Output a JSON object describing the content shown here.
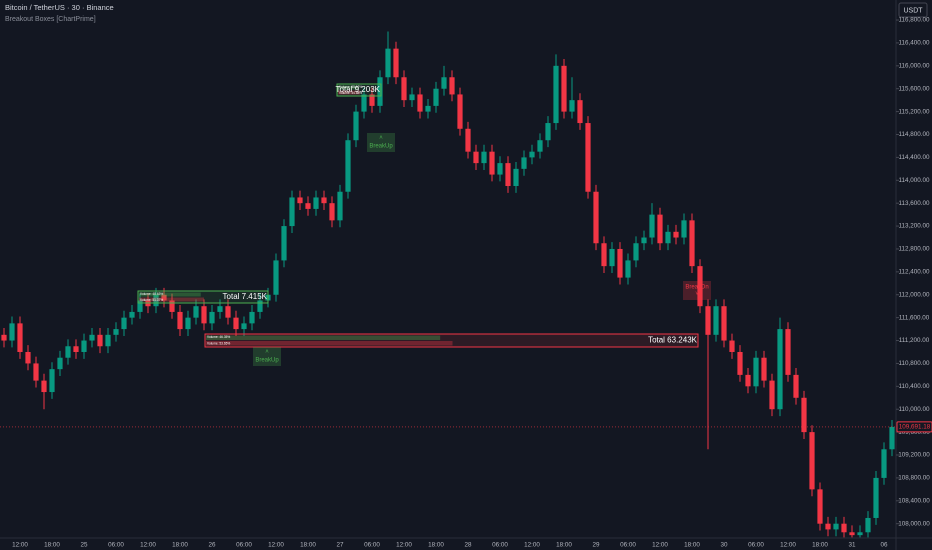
{
  "chart_data": {
    "type": "candlestick",
    "title": "Bitcoin / TetherUS · 30 · Binance",
    "subtitle": "Breakout Boxes [ChartPrime]",
    "currency": "USDT",
    "categories": [
      null,
      null,
      "12:00",
      null,
      null,
      null,
      "18:00",
      null,
      null,
      null,
      "25",
      null,
      null,
      null,
      "06:00",
      null,
      null,
      null,
      "12:00",
      null,
      null,
      null,
      "18:00",
      null,
      null,
      null,
      "26",
      null,
      null,
      null,
      "06:00",
      null,
      null,
      null,
      "12:00",
      null,
      null,
      null,
      "18:00",
      null,
      null,
      null,
      "27",
      null,
      null,
      null,
      "06:00",
      null,
      null,
      null,
      "12:00",
      null,
      null,
      null,
      "18:00",
      null,
      null,
      null,
      "28",
      null,
      null,
      null,
      "06:00",
      null,
      null,
      null,
      "12:00",
      null,
      null,
      null,
      "18:00",
      null,
      null,
      null,
      "29",
      null,
      null,
      null,
      "06:00",
      null,
      null,
      null,
      "12:00",
      null,
      null,
      null,
      "18:00",
      null,
      null,
      null,
      "30",
      null,
      null,
      null,
      "06:00",
      null,
      null,
      null,
      "12:00",
      null,
      null,
      null,
      "18:00",
      null,
      null,
      null,
      "31",
      null,
      null,
      null,
      "06",
      null
    ],
    "open": [
      111300,
      111200,
      111500,
      111000,
      110800,
      110500,
      110300,
      110700,
      110900,
      111100,
      111000,
      111200,
      111300,
      111100,
      111300,
      111400,
      111600,
      111700,
      111900,
      111800,
      112000,
      111900,
      111700,
      111400,
      111600,
      111800,
      111500,
      111700,
      111800,
      111600,
      111400,
      111500,
      111700,
      111900,
      112000,
      112600,
      113200,
      113700,
      113600,
      113500,
      113700,
      113600,
      113300,
      113800,
      114700,
      115200,
      115500,
      115300,
      115800,
      116300,
      115800,
      115400,
      115500,
      115200,
      115300,
      115600,
      115800,
      115500,
      114900,
      114500,
      114300,
      114500,
      114100,
      114300,
      113900,
      114200,
      114400,
      114500,
      114700,
      115000,
      116000,
      115200,
      115400,
      115000,
      113800,
      112900,
      112500,
      112800,
      112300,
      112600,
      112900,
      113000,
      113400,
      112900,
      113100,
      113000,
      113300,
      112500,
      111800,
      111300,
      111800,
      111200,
      111000,
      110600,
      110400,
      110900,
      110500,
      110000,
      111400,
      110600,
      110200,
      109600,
      108600,
      108000,
      107900,
      108000,
      107850,
      107800,
      107850,
      108100,
      108800,
      109300
    ],
    "high": [
      111420,
      111620,
      111620,
      111120,
      110920,
      110620,
      110820,
      111020,
      111220,
      111220,
      111320,
      111420,
      111420,
      111420,
      111520,
      111720,
      111820,
      112020,
      112020,
      112120,
      112120,
      112020,
      111820,
      111720,
      111920,
      111920,
      111820,
      111920,
      111920,
      111720,
      111620,
      111820,
      112020,
      112120,
      112720,
      113320,
      113820,
      113820,
      113720,
      113820,
      113820,
      113720,
      113920,
      114820,
      115320,
      115620,
      115620,
      115920,
      116600,
      116420,
      115920,
      115620,
      115620,
      115420,
      115720,
      116000,
      115920,
      115620,
      115020,
      114620,
      114620,
      114620,
      114420,
      114420,
      114320,
      114520,
      114620,
      114820,
      115120,
      116200,
      116120,
      115800,
      115520,
      115120,
      113920,
      113020,
      112920,
      112920,
      112720,
      113020,
      113120,
      113600,
      113520,
      113220,
      113220,
      113420,
      113420,
      112620,
      111920,
      111920,
      111920,
      111320,
      111120,
      110720,
      111020,
      111020,
      110620,
      111600,
      111520,
      110720,
      110320,
      109720,
      108720,
      108120,
      108120,
      108120,
      107970,
      107970,
      108220,
      108920,
      109420,
      109811
    ],
    "low": [
      111080,
      111080,
      110880,
      110680,
      110380,
      110000,
      110180,
      110580,
      110780,
      110880,
      110880,
      111080,
      110980,
      110980,
      111180,
      111280,
      111480,
      111580,
      111680,
      111680,
      111780,
      111580,
      111280,
      111280,
      111480,
      111380,
      111380,
      111580,
      111480,
      111280,
      111280,
      111380,
      111580,
      111780,
      111880,
      112480,
      113080,
      113480,
      113380,
      113380,
      113480,
      113180,
      113180,
      113680,
      114580,
      115080,
      115180,
      115180,
      115680,
      115680,
      115280,
      115280,
      115080,
      115080,
      115180,
      115480,
      115380,
      114780,
      114380,
      114180,
      114180,
      113980,
      113980,
      113780,
      113780,
      114080,
      114280,
      114380,
      114580,
      114880,
      115080,
      115080,
      114880,
      113680,
      112780,
      112380,
      112380,
      112180,
      112180,
      112480,
      112780,
      112880,
      112780,
      112780,
      112880,
      112880,
      112380,
      111680,
      109300,
      111180,
      111080,
      110880,
      110480,
      110280,
      110280,
      110380,
      109880,
      109880,
      110480,
      110080,
      109480,
      108480,
      107880,
      107780,
      107780,
      107760,
      107760,
      107760,
      107760,
      107980,
      108680,
      109180
    ],
    "close": [
      111200,
      111500,
      111000,
      110800,
      110500,
      110300,
      110700,
      110900,
      111100,
      111000,
      111200,
      111300,
      111100,
      111300,
      111400,
      111600,
      111700,
      111900,
      111800,
      112000,
      111900,
      111700,
      111400,
      111600,
      111800,
      111500,
      111700,
      111800,
      111600,
      111400,
      111500,
      111700,
      111900,
      112000,
      112600,
      113200,
      113700,
      113600,
      113500,
      113700,
      113600,
      113300,
      113800,
      114700,
      115200,
      115500,
      115300,
      115800,
      116300,
      115800,
      115400,
      115500,
      115200,
      115300,
      115600,
      115800,
      115500,
      114900,
      114500,
      114300,
      114500,
      114100,
      114300,
      113900,
      114200,
      114400,
      114500,
      114700,
      115000,
      116000,
      115200,
      115400,
      115000,
      113800,
      112900,
      112500,
      112800,
      112300,
      112600,
      112900,
      113000,
      113400,
      112900,
      113100,
      113000,
      113300,
      112500,
      111800,
      111300,
      111800,
      111200,
      111000,
      110600,
      110400,
      110900,
      110500,
      110000,
      111400,
      110600,
      110200,
      109600,
      108600,
      108000,
      107900,
      108000,
      107850,
      107800,
      107850,
      108100,
      108800,
      109300,
      109691.18
    ],
    "last_price_label": "109,691.18",
    "up_color": "#089981",
    "down_color": "#f23645",
    "ylim": [
      107750,
      117150
    ],
    "yticks": [
      {
        "value": 108000,
        "label": "108,000.00"
      },
      {
        "value": 108400,
        "label": "108,400.00"
      },
      {
        "value": 108800,
        "label": "108,800.00"
      },
      {
        "value": 109200,
        "label": "109,200.00"
      },
      {
        "value": 109600,
        "label": "109,600.00"
      },
      {
        "value": 110000,
        "label": "110,000.00"
      },
      {
        "value": 110400,
        "label": "110,400.00"
      },
      {
        "value": 110800,
        "label": "110,800.00"
      },
      {
        "value": 111200,
        "label": "111,200.00"
      },
      {
        "value": 111600,
        "label": "111,600.00"
      },
      {
        "value": 112000,
        "label": "112,000.00"
      },
      {
        "value": 112400,
        "label": "112,400.00"
      },
      {
        "value": 112800,
        "label": "112,800.00"
      },
      {
        "value": 113200,
        "label": "113,200.00"
      },
      {
        "value": 113600,
        "label": "113,600.00"
      },
      {
        "value": 114000,
        "label": "114,000.00"
      },
      {
        "value": 114400,
        "label": "114,400.00"
      },
      {
        "value": 114800,
        "label": "114,800.00"
      },
      {
        "value": 115200,
        "label": "115,200.00"
      },
      {
        "value": 115600,
        "label": "115,600.00"
      },
      {
        "value": 116000,
        "label": "116,000.00"
      },
      {
        "value": 116400,
        "label": "116,400.00"
      },
      {
        "value": 116800,
        "label": "116,800.00"
      }
    ],
    "grid": false,
    "boxes": [
      {
        "color": "#4caf50",
        "total": "Total 7.415K",
        "rows": [
          "Volume: 48.63%",
          "Volume: 51.37%"
        ]
      },
      {
        "color": "#4caf50",
        "total": "Total 9.203K",
        "rows": [
          "Volume: 55.12%",
          "Volume: 44.88%"
        ]
      },
      {
        "color": "#f23645",
        "total": "Total 63.243K",
        "rows": [
          "Volume: 46.35%",
          "Volume: 53.65%"
        ]
      }
    ],
    "signals": [
      {
        "label": "BreakUp",
        "color": "#4caf50"
      },
      {
        "label": "BreakUp",
        "color": "#4caf50"
      },
      {
        "label": "BreakDn",
        "color": "#f23645"
      }
    ]
  }
}
